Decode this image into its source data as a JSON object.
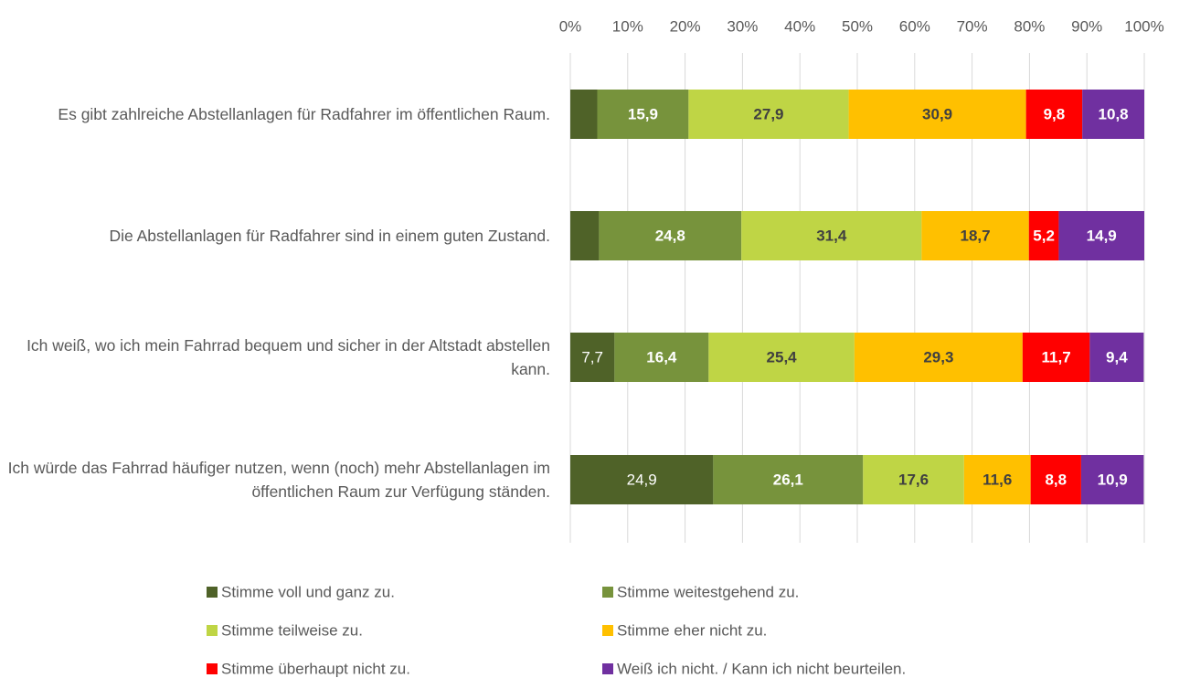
{
  "chart_data": {
    "type": "stacked_barh",
    "categories": [
      "Es gibt zahlreiche Abstellanlagen für Radfahrer im öffentlichen Raum.",
      "Die Abstellanlagen für Radfahrer sind in einem guten Zustand.",
      "Ich weiß, wo ich mein Fahrrad bequem und sicher in der Altstadt abstellen kann.",
      "Ich würde das Fahrrad häufiger nutzen, wenn (noch) mehr Abstellanlagen im öffentlichen Raum zur Verfügung ständen."
    ],
    "series": [
      {
        "name": "Stimme voll und ganz zu.",
        "color": "#4f6228",
        "values": [
          4.7,
          5.0,
          7.7,
          24.9
        ],
        "value_labels": [
          null,
          null,
          "7,7",
          "24,9"
        ]
      },
      {
        "name": "Stimme weitestgehend zu.",
        "color": "#77933c",
        "values": [
          15.9,
          24.8,
          16.4,
          26.1
        ],
        "value_labels": [
          "15,9",
          "24,8",
          "16,4",
          "26,1"
        ]
      },
      {
        "name": "Stimme teilweise zu.",
        "color": "#bfd545",
        "values": [
          27.9,
          31.4,
          25.4,
          17.6
        ],
        "value_labels": [
          "27,9",
          "31,4",
          "25,4",
          "17,6"
        ]
      },
      {
        "name": "Stimme eher nicht zu.",
        "color": "#ffc000",
        "values": [
          30.9,
          18.7,
          29.3,
          11.6
        ],
        "value_labels": [
          "30,9",
          "18,7",
          "29,3",
          "11,6"
        ]
      },
      {
        "name": "Stimme überhaupt nicht zu.",
        "color": "#ff0000",
        "values": [
          9.8,
          5.2,
          11.7,
          8.8
        ],
        "value_labels": [
          "9,8",
          "5,2",
          "11,7",
          "8,8"
        ]
      },
      {
        "name": "Weiß ich nicht. / Kann ich nicht beurteilen.",
        "color": "#7030a0",
        "values": [
          10.8,
          14.9,
          9.4,
          10.9
        ],
        "value_labels": [
          "10,8",
          "14,9",
          "9,4",
          "10,9"
        ]
      }
    ],
    "xlim": [
      0,
      100
    ],
    "xticks": [
      {
        "value": 0,
        "label": "0%"
      },
      {
        "value": 10,
        "label": "10%"
      },
      {
        "value": 20,
        "label": "20%"
      },
      {
        "value": 30,
        "label": "30%"
      },
      {
        "value": 40,
        "label": "40%"
      },
      {
        "value": 50,
        "label": "50%"
      },
      {
        "value": 60,
        "label": "60%"
      },
      {
        "value": 70,
        "label": "70%"
      },
      {
        "value": 80,
        "label": "80%"
      },
      {
        "value": 90,
        "label": "90%"
      },
      {
        "value": 100,
        "label": "100%"
      }
    ],
    "grid": true,
    "legend": "bottom"
  }
}
